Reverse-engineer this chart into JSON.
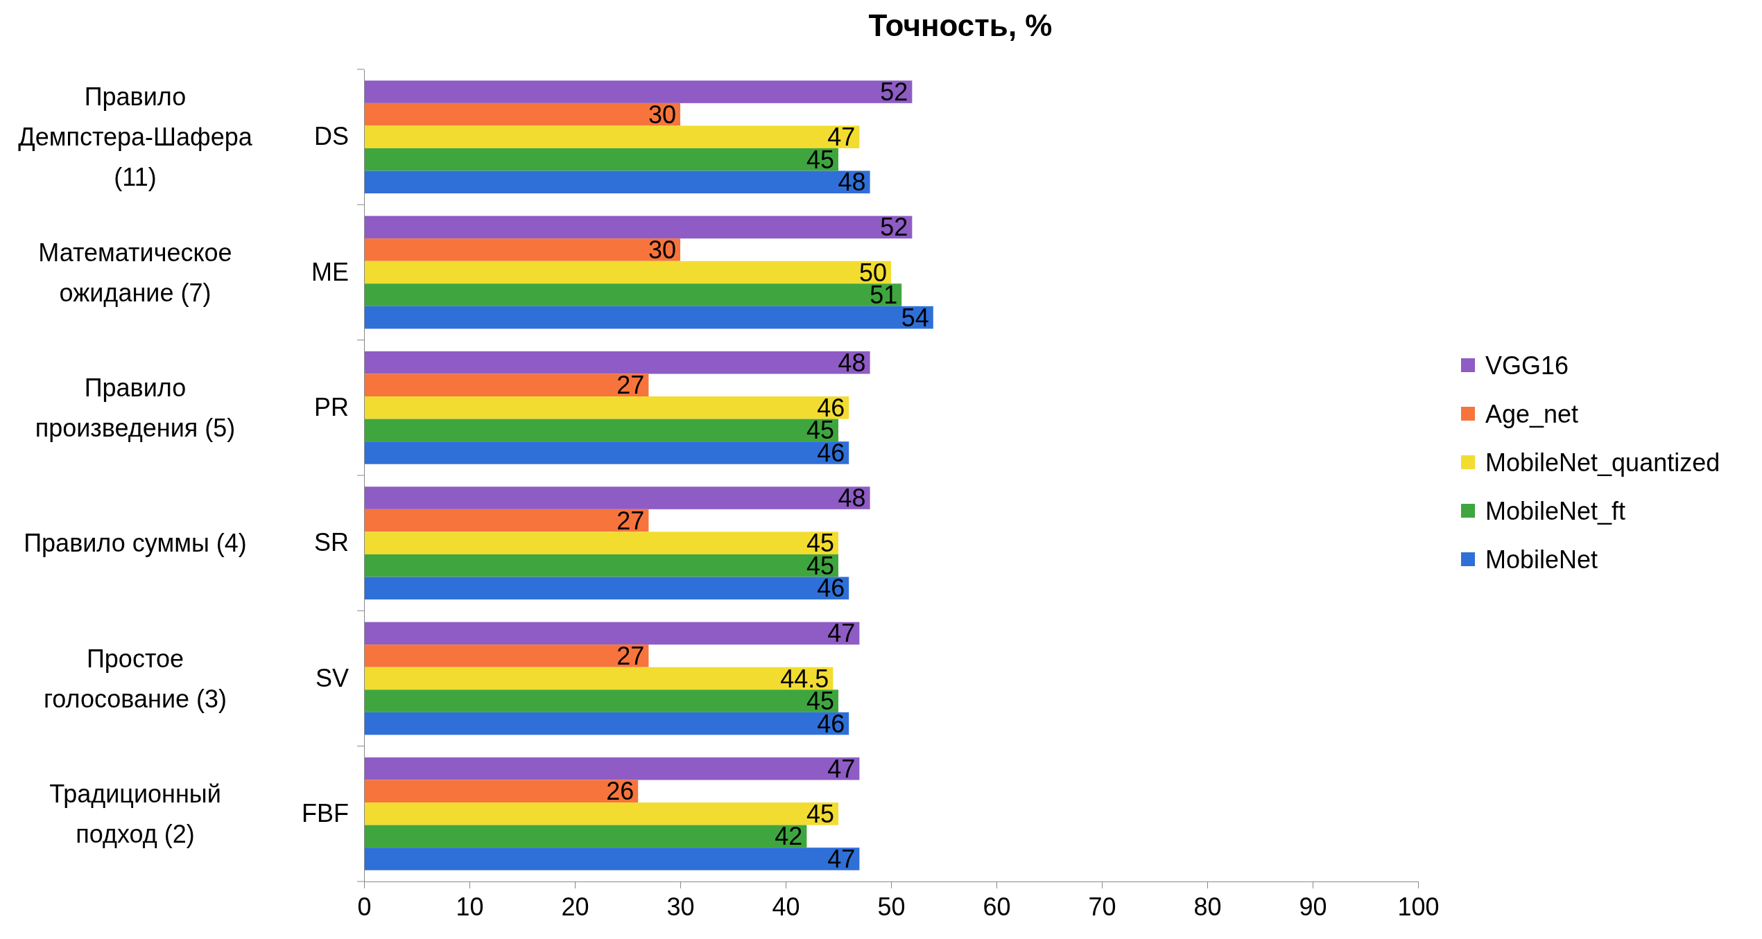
{
  "chart_data": {
    "type": "bar",
    "orientation": "horizontal",
    "title": "Точность, %",
    "categories": [
      "DS",
      "ME",
      "PR",
      "SR",
      "SV",
      "FBF"
    ],
    "series": [
      {
        "name": "VGG16",
        "color": "#8e5cc4",
        "values": [
          52,
          52,
          48,
          48,
          47,
          47
        ]
      },
      {
        "name": "Age_net",
        "color": "#f7743c",
        "values": [
          30,
          30,
          27,
          27,
          27,
          26
        ]
      },
      {
        "name": "MobileNet_quantized",
        "color": "#f2dc30",
        "values": [
          47,
          50,
          46,
          45,
          44.5,
          45
        ]
      },
      {
        "name": "MobileNet_ft",
        "color": "#3fa63f",
        "values": [
          45,
          51,
          45,
          45,
          45,
          42
        ]
      },
      {
        "name": "MobileNet",
        "color": "#2f6fd8",
        "values": [
          48,
          54,
          46,
          46,
          46,
          47
        ]
      }
    ],
    "xlim": [
      0,
      100
    ],
    "xticks": [
      0,
      10,
      20,
      30,
      40,
      50,
      60,
      70,
      80,
      90,
      100
    ],
    "data_labels": true,
    "legend": "right",
    "grid": false,
    "annotations": [
      "Правило Демпстера-Шафера (11)",
      "Математическое ожидание (7)",
      "Правило произведения (5)",
      "Правило суммы (4)",
      "Простое голосование (3)",
      "Традиционный подход (2)"
    ]
  }
}
